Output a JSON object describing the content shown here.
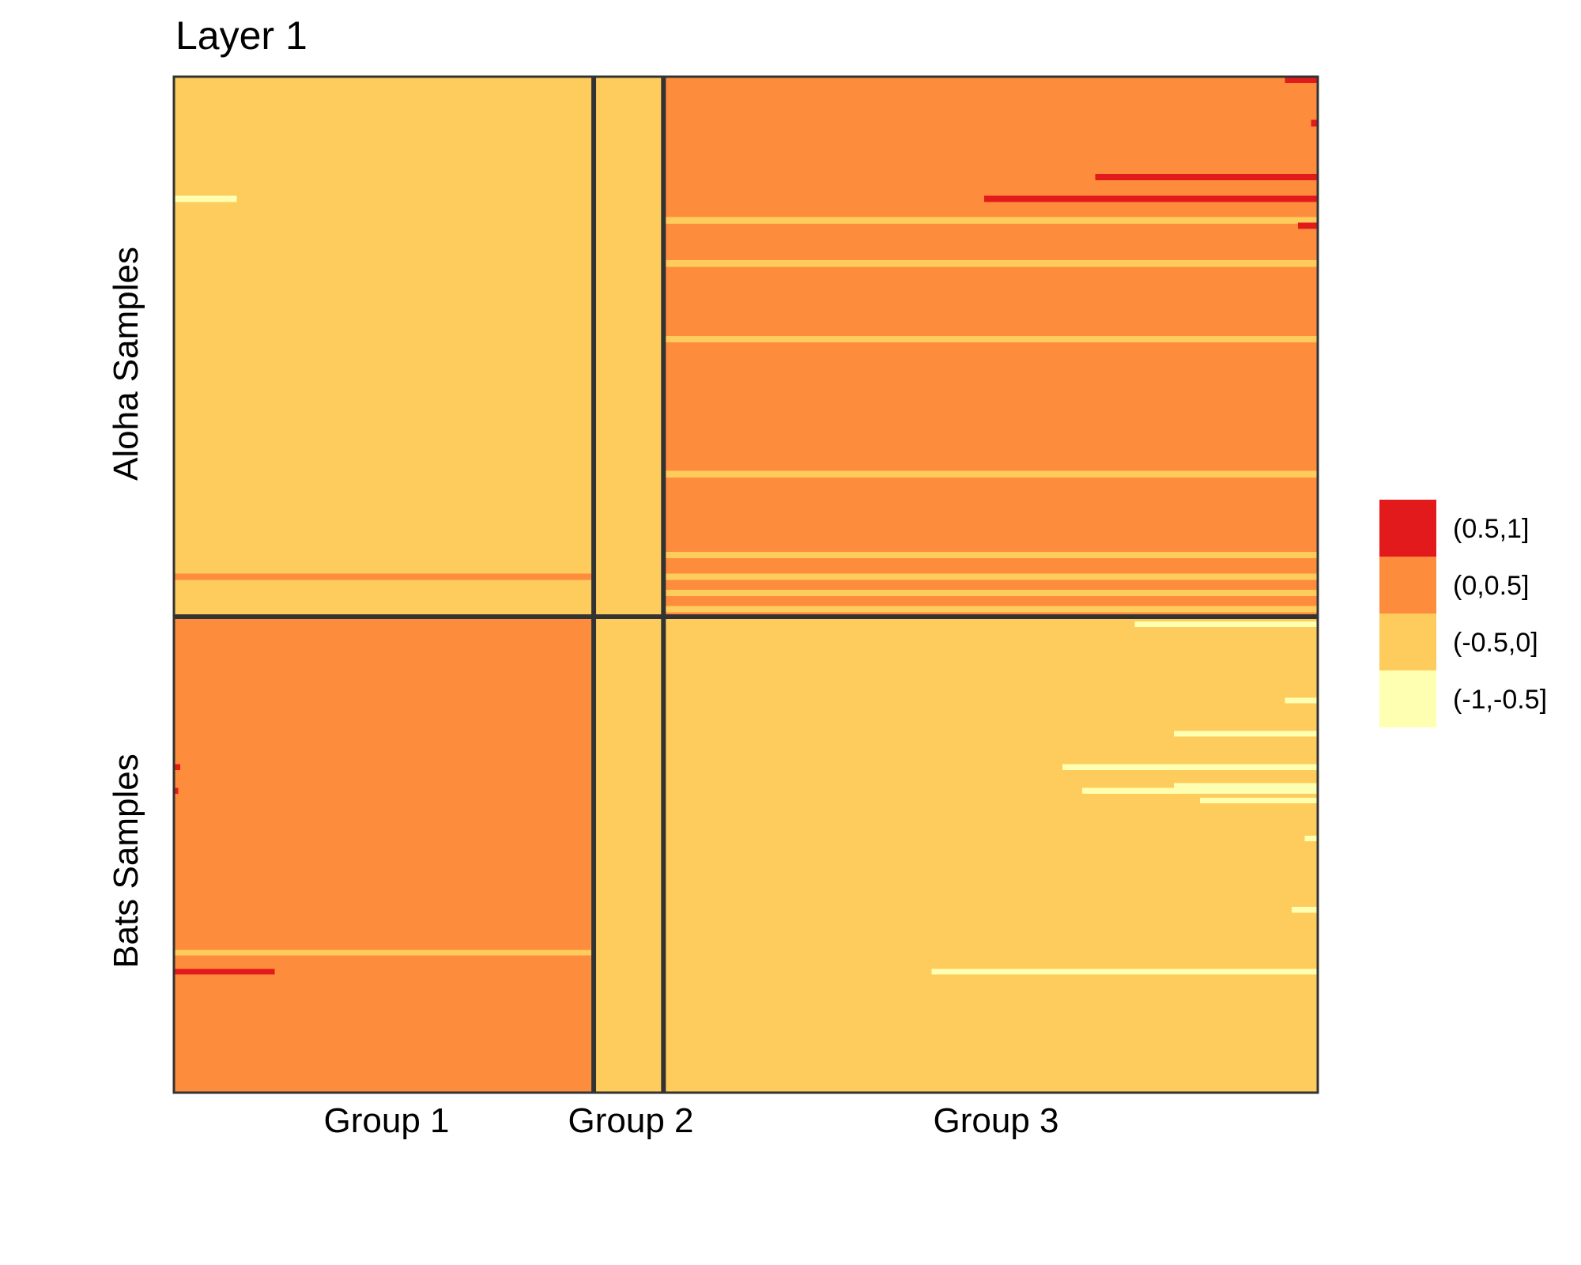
{
  "chart_data": {
    "type": "heatmap",
    "title": "Layer 1",
    "xlabel": "",
    "ylabel": "",
    "column_groups": [
      "Group 1",
      "Group 2",
      "Group 3"
    ],
    "row_groups": [
      "Aloha Samples",
      "Bats Samples"
    ],
    "legend": {
      "position": "right",
      "categories": [
        "(0.5,1]",
        "(0,0.5]",
        "(-0.5,0]",
        "(-1,-0.5]"
      ],
      "colors": [
        "#e31a1c",
        "#fd8d3c",
        "#fecc5c",
        "#ffffb2"
      ]
    },
    "n_rows_per_group": 100,
    "column_group_widths": [
      0.367,
      0.061,
      0.572
    ],
    "blocks": [
      {
        "row_group": "Aloha Samples",
        "column_group": "Group 1",
        "base": "(-0.5,0]"
      },
      {
        "row_group": "Aloha Samples",
        "column_group": "Group 2",
        "base": "(-0.5,0]"
      },
      {
        "row_group": "Aloha Samples",
        "column_group": "Group 3",
        "base": "(0,0.5]"
      },
      {
        "row_group": "Bats Samples",
        "column_group": "Group 1",
        "base": "(0,0.5]"
      },
      {
        "row_group": "Bats Samples",
        "column_group": "Group 2",
        "base": "(-0.5,0]"
      },
      {
        "row_group": "Bats Samples",
        "column_group": "Group 3",
        "base": "(-0.5,0]"
      }
    ],
    "deviations": [
      {
        "row_group": "Aloha Samples",
        "row": 0,
        "column_group": "Group 3",
        "from": 0.95,
        "to": 1.0,
        "value": "(0.5,1]"
      },
      {
        "row_group": "Aloha Samples",
        "row": 8,
        "column_group": "Group 3",
        "from": 0.99,
        "to": 1.0,
        "value": "(0.5,1]"
      },
      {
        "row_group": "Aloha Samples",
        "row": 18,
        "column_group": "Group 3",
        "from": 0.66,
        "to": 1.0,
        "value": "(0.5,1]"
      },
      {
        "row_group": "Aloha Samples",
        "row": 22,
        "column_group": "Group 1",
        "from": 0.0,
        "to": 0.15,
        "value": "(-1,-0.5]"
      },
      {
        "row_group": "Aloha Samples",
        "row": 22,
        "column_group": "Group 3",
        "from": 0.49,
        "to": 1.0,
        "value": "(0.5,1]"
      },
      {
        "row_group": "Aloha Samples",
        "row": 26,
        "column_group": "Group 3",
        "from": 0.0,
        "to": 1.0,
        "value": "(-0.5,0]"
      },
      {
        "row_group": "Aloha Samples",
        "row": 27,
        "column_group": "Group 3",
        "from": 0.97,
        "to": 1.0,
        "value": "(0.5,1]"
      },
      {
        "row_group": "Aloha Samples",
        "row": 34,
        "column_group": "Group 3",
        "from": 0.0,
        "to": 1.0,
        "value": "(-0.5,0]"
      },
      {
        "row_group": "Aloha Samples",
        "row": 48,
        "column_group": "Group 3",
        "from": 0.0,
        "to": 1.0,
        "value": "(-0.5,0]"
      },
      {
        "row_group": "Aloha Samples",
        "row": 73,
        "column_group": "Group 3",
        "from": 0.0,
        "to": 1.0,
        "value": "(-0.5,0]"
      },
      {
        "row_group": "Aloha Samples",
        "row": 88,
        "column_group": "Group 3",
        "from": 0.0,
        "to": 1.0,
        "value": "(-0.5,0]"
      },
      {
        "row_group": "Aloha Samples",
        "row": 92,
        "column_group": "Group 1",
        "from": 0.0,
        "to": 1.0,
        "value": "(0,0.5]"
      },
      {
        "row_group": "Aloha Samples",
        "row": 92,
        "column_group": "Group 3",
        "from": 0.0,
        "to": 1.0,
        "value": "(-0.5,0]"
      },
      {
        "row_group": "Aloha Samples",
        "row": 95,
        "column_group": "Group 3",
        "from": 0.0,
        "to": 1.0,
        "value": "(-0.5,0]"
      },
      {
        "row_group": "Aloha Samples",
        "row": 98,
        "column_group": "Group 3",
        "from": 0.0,
        "to": 1.0,
        "value": "(-0.5,0]"
      },
      {
        "row_group": "Bats Samples",
        "row": 1,
        "column_group": "Group 3",
        "from": 0.72,
        "to": 1.0,
        "value": "(-1,-0.5]"
      },
      {
        "row_group": "Bats Samples",
        "row": 17,
        "column_group": "Group 3",
        "from": 0.95,
        "to": 1.0,
        "value": "(-1,-0.5]"
      },
      {
        "row_group": "Bats Samples",
        "row": 24,
        "column_group": "Group 3",
        "from": 0.78,
        "to": 1.0,
        "value": "(-1,-0.5]"
      },
      {
        "row_group": "Bats Samples",
        "row": 31,
        "column_group": "Group 1",
        "from": 0.0,
        "to": 0.015,
        "value": "(0.5,1]"
      },
      {
        "row_group": "Bats Samples",
        "row": 31,
        "column_group": "Group 3",
        "from": 0.61,
        "to": 1.0,
        "value": "(-1,-0.5]"
      },
      {
        "row_group": "Bats Samples",
        "row": 35,
        "column_group": "Group 3",
        "from": 0.78,
        "to": 1.0,
        "value": "(-1,-0.5]"
      },
      {
        "row_group": "Bats Samples",
        "row": 36,
        "column_group": "Group 1",
        "from": 0.0,
        "to": 0.01,
        "value": "(0.5,1]"
      },
      {
        "row_group": "Bats Samples",
        "row": 36,
        "column_group": "Group 3",
        "from": 0.64,
        "to": 1.0,
        "value": "(-1,-0.5]"
      },
      {
        "row_group": "Bats Samples",
        "row": 38,
        "column_group": "Group 3",
        "from": 0.82,
        "to": 1.0,
        "value": "(-1,-0.5]"
      },
      {
        "row_group": "Bats Samples",
        "row": 46,
        "column_group": "Group 3",
        "from": 0.98,
        "to": 1.0,
        "value": "(-1,-0.5]"
      },
      {
        "row_group": "Bats Samples",
        "row": 61,
        "column_group": "Group 3",
        "from": 0.96,
        "to": 1.0,
        "value": "(-1,-0.5]"
      },
      {
        "row_group": "Bats Samples",
        "row": 70,
        "column_group": "Group 1",
        "from": 0.0,
        "to": 1.0,
        "value": "(-0.5,0]"
      },
      {
        "row_group": "Bats Samples",
        "row": 74,
        "column_group": "Group 1",
        "from": 0.0,
        "to": 0.24,
        "value": "(0.5,1]"
      },
      {
        "row_group": "Bats Samples",
        "row": 74,
        "column_group": "Group 3",
        "from": 0.41,
        "to": 1.0,
        "value": "(-1,-0.5]"
      }
    ]
  }
}
